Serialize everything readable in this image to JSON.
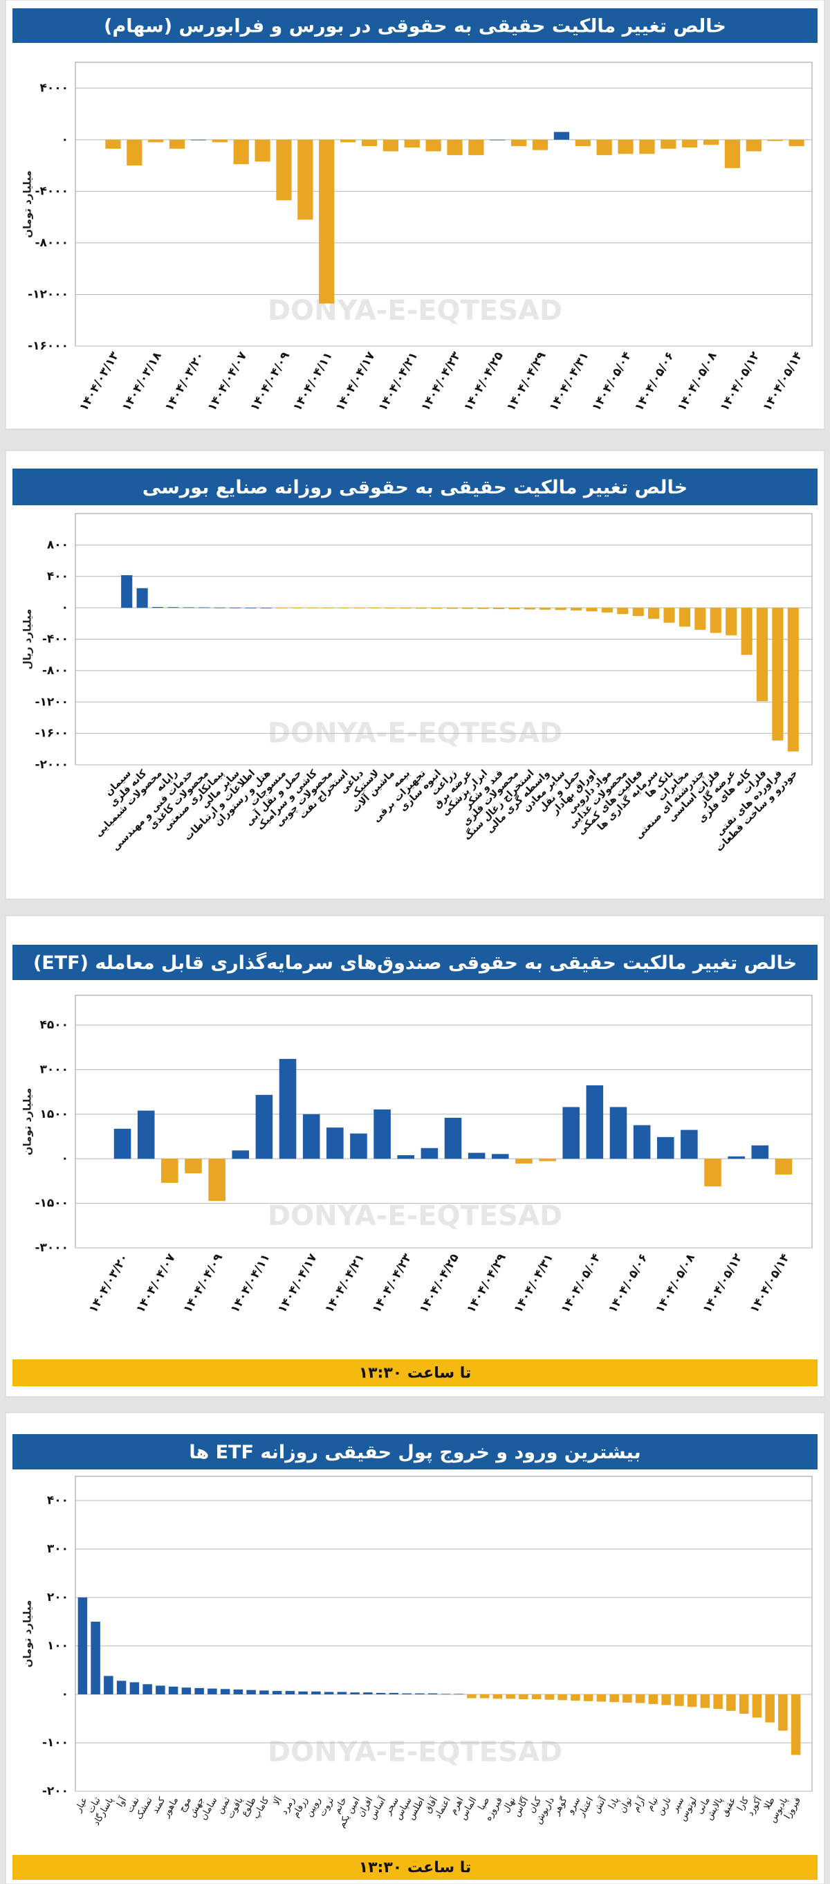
{
  "watermark": "DONYA-E-EQTESAD",
  "chart_data": [
    {
      "type": "bar",
      "title": "خالص تغییر مالکیت حقیقی به حقوقی در بورس و فرابورس (سهام)",
      "y_label": "میلیارد تومان",
      "color_positive": "#1f5ca8",
      "color_negative": "#e8a623",
      "grid": true,
      "categories": [
        "۱۴۰۴/۰۳/۱۳",
        null,
        "۱۴۰۴/۰۳/۱۸",
        null,
        "۱۴۰۴/۰۳/۲۰",
        null,
        "۱۴۰۴/۰۴/۰۷",
        null,
        "۱۴۰۴/۰۴/۰۹",
        null,
        "۱۴۰۴/۰۴/۱۱",
        null,
        "۱۴۰۴/۰۴/۱۷",
        null,
        "۱۴۰۴/۰۴/۲۱",
        null,
        "۱۴۰۴/۰۴/۲۳",
        null,
        "۱۴۰۴/۰۴/۲۵",
        null,
        "۱۴۰۴/۰۴/۲۹",
        null,
        "۱۴۰۴/۰۴/۳۱",
        null,
        "۱۴۰۴/۰۵/۰۴",
        null,
        "۱۴۰۴/۰۵/۰۶",
        null,
        "۱۴۰۴/۰۵/۰۸",
        null,
        "۱۴۰۴/۰۵/۱۲",
        null,
        "۱۴۰۴/۰۵/۱۴"
      ],
      "values": [
        -700,
        -2000,
        -200,
        -700,
        0,
        -200,
        -1900,
        -1700,
        -4700,
        -6200,
        -12700,
        -200,
        -500,
        -900,
        -600,
        -900,
        -1200,
        -1200,
        0,
        -500,
        -800,
        600,
        -500,
        -1200,
        -1100,
        -1100,
        -700,
        -600,
        -400,
        -2200,
        -900,
        -100,
        -500
      ],
      "ylim": [
        -16000,
        6000
      ],
      "yticks": [
        {
          "value": 4000,
          "label": "۴۰۰۰"
        },
        {
          "value": 0,
          "label": "۰"
        },
        {
          "value": -4000,
          "label": "-۴۰۰۰"
        },
        {
          "value": -8000,
          "label": "-۸۰۰۰"
        },
        {
          "value": -12000,
          "label": "-۱۲۰۰۰"
        },
        {
          "value": -16000,
          "label": "-۱۶۰۰۰"
        }
      ]
    },
    {
      "type": "bar",
      "title": "خالص تغییر مالکیت حقیقی به حقوقی روزانه صنایع بورسی",
      "y_label": "میلیارد ریال",
      "color_positive": "#1f5ca8",
      "color_negative": "#e8a623",
      "grid": true,
      "categories": [
        "سیمان",
        "کانه فلزی",
        "محصولات شیمیایی",
        "رایانه",
        "خدمات فنی و مهندسی",
        "محصولات کاغذی",
        "پیمانکاری صنعتی",
        "سایر مالی",
        "اطلاعات و ارتباطات",
        "هتل و رستوران",
        "منسوجات",
        "حمل و نقل آبی",
        "کاشی و سرامیک",
        "محصولات چوبی",
        "استخراج نفت",
        "دباغی",
        "لاستیک",
        "ماشین آلات",
        "بیمه",
        "تجهیزات برقی",
        "انبوه سازی",
        "زراعت",
        "عرضه برق",
        "ابزار پزشکی",
        "قند و شکر",
        "محصولات فلزی",
        "استخراج زغال سنگ",
        "واسطه گری مالی",
        "سایر معادن",
        "حمل و نقل",
        "اوراق بهادار",
        "مواد دارویی",
        "محصولات غذایی",
        "فعالیت های کمکی",
        "سرمایه گذاری ها",
        "بانک ها",
        "مخابرات",
        "چندرشته ای صنعتی",
        "فلزات اساسی",
        "عرضه گاز",
        "کانه های فلزی",
        "فلزات",
        "فراورده های نفتی",
        "خودرو و ساخت قطعات"
      ],
      "values": [
        415,
        250,
        10,
        8,
        6,
        5,
        3,
        2,
        1,
        1,
        -2,
        -3,
        -4,
        -5,
        -6,
        -7,
        -8,
        -9,
        -10,
        -11,
        -12,
        -13,
        -14,
        -15,
        -17,
        -19,
        -21,
        -24,
        -28,
        -33,
        -45,
        -60,
        -80,
        -105,
        -140,
        -190,
        -240,
        -280,
        -320,
        -350,
        -600,
        -1190,
        -1690,
        -1830
      ],
      "ylim": [
        -2000,
        1200
      ],
      "yticks": [
        {
          "value": 800,
          "label": "۸۰۰"
        },
        {
          "value": 400,
          "label": "۴۰۰"
        },
        {
          "value": 0,
          "label": "۰"
        },
        {
          "value": -400,
          "label": "-۴۰۰"
        },
        {
          "value": -800,
          "label": "-۸۰۰"
        },
        {
          "value": -1200,
          "label": "-۱۲۰۰"
        },
        {
          "value": -1600,
          "label": "-۱۶۰۰"
        },
        {
          "value": -2000,
          "label": "-۲۰۰۰"
        }
      ]
    },
    {
      "type": "bar",
      "title": "خالص تغییر مالکیت حقیقی به حقوقی صندوق‌های سرمایه‌گذاری قابل معامله (ETF)",
      "y_label": "میلیارد تومان",
      "footnote": "تا ساعت ۱۳:۳۰",
      "color_positive": "#1f5ca8",
      "color_negative": "#e8a623",
      "grid": true,
      "categories": [
        "۱۴۰۴/۰۳/۲۰",
        null,
        "۱۴۰۴/۰۴/۰۷",
        null,
        "۱۴۰۴/۰۴/۰۹",
        null,
        "۱۴۰۴/۰۴/۱۱",
        null,
        "۱۴۰۴/۰۴/۱۷",
        null,
        "۱۴۰۴/۰۴/۲۱",
        null,
        "۱۴۰۴/۰۴/۲۳",
        null,
        "۱۴۰۴/۰۴/۲۵",
        null,
        "۱۴۰۴/۰۴/۲۹",
        null,
        "۱۴۰۴/۰۴/۳۱",
        null,
        "۱۴۰۴/۰۵/۰۴",
        null,
        "۱۴۰۴/۰۵/۰۶",
        null,
        "۱۴۰۴/۰۵/۰۸",
        null,
        "۱۴۰۴/۰۵/۱۲",
        null,
        "۱۴۰۴/۰۵/۱۴"
      ],
      "values": [
        1010,
        1620,
        -810,
        -490,
        -1420,
        280,
        2150,
        3360,
        1500,
        1050,
        850,
        1660,
        120,
        360,
        1380,
        200,
        160,
        -160,
        -80,
        1740,
        2470,
        1740,
        1130,
        730,
        970,
        -930,
        80,
        450,
        -530
      ],
      "ylim": [
        -3000,
        5500
      ],
      "yticks": [
        {
          "value": 4500,
          "label": "۴۵۰۰"
        },
        {
          "value": 3000,
          "label": "۳۰۰۰"
        },
        {
          "value": 1500,
          "label": "۱۵۰۰"
        },
        {
          "value": 0,
          "label": "۰"
        },
        {
          "value": -1500,
          "label": "-۱۵۰۰"
        },
        {
          "value": -3000,
          "label": "-۳۰۰۰"
        }
      ]
    },
    {
      "type": "bar",
      "title": "بیشترین ورود و خروج پول حقیقی روزانه ETF ها",
      "y_label": "میلیارد تومان",
      "footnote": "تا ساعت ۱۳:۳۰",
      "color_positive": "#1f5ca8",
      "color_negative": "#e8a623",
      "grid": true,
      "categories": [
        "عیار",
        "ثبات",
        "پاسارگاد",
        "آوا",
        "نفت",
        "تمشک",
        "کمند",
        "ماهور",
        "موج",
        "جهش",
        "سامان",
        "ثمین",
        "یاقوت",
        "طلوع",
        "کاماپ",
        "آلا",
        "زمرد",
        "زرفام",
        "رویین",
        "ثروت",
        "خاتم",
        "امین یکم",
        "افران",
        "آساس",
        "سحر",
        "سپاس",
        "اطلس",
        "آفاق",
        "اعتماد",
        "اهرم",
        "الماس",
        "صبا",
        "فیروزه",
        "نهال",
        "آگاس",
        "کیان",
        "داریوش",
        "گوهر",
        "سرو",
        "اعتبار",
        "آتش",
        "پادا",
        "توان",
        "آرام",
        "تیام",
        "نارین",
        "سپر",
        "لوتوس",
        "مانی",
        "پالایش",
        "عقیق",
        "کارا",
        "آکورد",
        "طلا",
        "پادیوس",
        "فیروزا"
      ],
      "values": [
        200,
        150,
        38,
        28,
        25,
        21,
        18,
        16,
        14,
        13,
        12,
        11,
        10,
        9,
        8,
        7,
        7,
        6,
        6,
        5,
        5,
        4,
        4,
        3,
        3,
        2,
        2,
        2,
        1,
        1,
        -8,
        -8,
        -9,
        -9,
        -10,
        -10,
        -11,
        -12,
        -13,
        -14,
        -15,
        -16,
        -17,
        -18,
        -20,
        -22,
        -24,
        -26,
        -28,
        -30,
        -34,
        -40,
        -48,
        -58,
        -75,
        -125
      ],
      "ylim": [
        -200,
        450
      ],
      "yticks": [
        {
          "value": 400,
          "label": "۴۰۰"
        },
        {
          "value": 300,
          "label": "۳۰۰"
        },
        {
          "value": 200,
          "label": "۲۰۰"
        },
        {
          "value": 100,
          "label": "۱۰۰"
        },
        {
          "value": 0,
          "label": "۰"
        },
        {
          "value": -100,
          "label": "-۱۰۰"
        },
        {
          "value": -200,
          "label": "-۲۰۰"
        }
      ]
    }
  ]
}
